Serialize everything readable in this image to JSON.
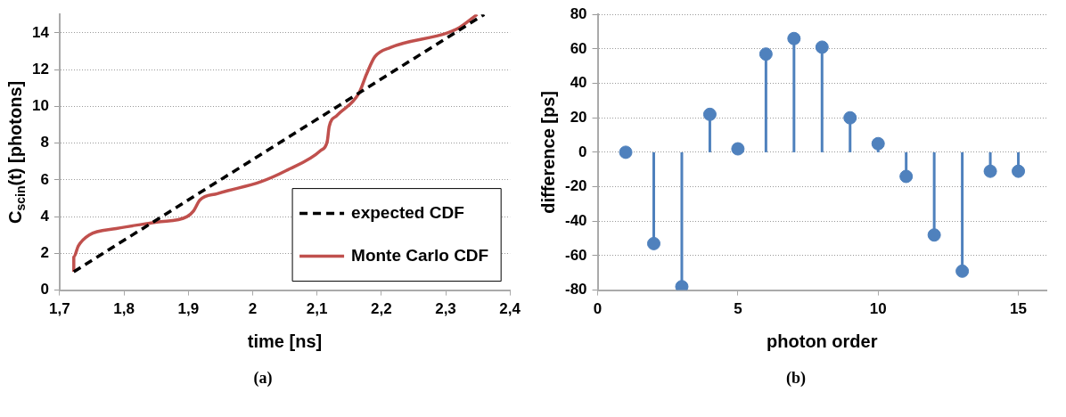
{
  "chart_data": [
    {
      "type": "line",
      "xlabel": "time [ns]",
      "ylabel": "C$_{scin}$(t) [photons]",
      "xlim": [
        1.7,
        2.4
      ],
      "xticks": [
        {
          "value": 1.7,
          "label": "1,7"
        },
        {
          "value": 1.8,
          "label": "1,8"
        },
        {
          "value": 1.9,
          "label": "1,9"
        },
        {
          "value": 2,
          "label": "2"
        },
        {
          "value": 2.1,
          "label": "2,1"
        },
        {
          "value": 2.2,
          "label": "2,2"
        },
        {
          "value": 2.3,
          "label": "2,3"
        },
        {
          "value": 2.4,
          "label": "2,4"
        }
      ],
      "ylim": [
        0,
        15
      ],
      "yticks": [
        0,
        2,
        4,
        6,
        8,
        10,
        12,
        14
      ],
      "grid": "y",
      "legend": "bottom right",
      "marker": "none",
      "annotations": [
        "(a)"
      ],
      "series": [
        {
          "name": "expected CDF",
          "color": "#000000",
          "line_style": "dashed",
          "x": [
            1.722,
            2.36
          ],
          "values": [
            1,
            15
          ]
        },
        {
          "name": "Monte Carlo CDF",
          "color": "#c0504d",
          "line_style": "solid",
          "x": [
            1.722,
            1.722,
            1.729,
            1.746,
            1.788,
            1.851,
            1.898,
            1.908,
            1.918,
            1.945,
            2.013,
            2.052,
            2.106,
            2.116,
            2.119,
            2.131,
            2.165,
            2.177,
            2.19,
            2.214,
            2.303,
            2.322,
            2.349
          ],
          "values": [
            1,
            1.8,
            2.4,
            3,
            3.35,
            3.7,
            4,
            4.3,
            4.9,
            5.25,
            5.9,
            6.5,
            7.6,
            8.1,
            8.9,
            9.5,
            10.7,
            11.75,
            12.7,
            13.2,
            14,
            14.3,
            15
          ]
        }
      ]
    },
    {
      "type": "lollipop",
      "xlabel": "photon order",
      "ylabel": "difference [ps]",
      "x": [
        1,
        2,
        3,
        4,
        5,
        6,
        7,
        8,
        9,
        10,
        11,
        12,
        13,
        14,
        15
      ],
      "values": [
        0,
        -53,
        -78,
        22,
        2,
        57,
        66,
        61,
        20,
        5,
        -14,
        -48,
        -69,
        -11,
        -11
      ],
      "color": "#4f81bd",
      "marker": "circle",
      "xlim": [
        0,
        16
      ],
      "xticks": [
        0,
        5,
        10,
        15
      ],
      "ylim": [
        -80,
        80
      ],
      "yticks": [
        -80,
        -60,
        -40,
        -20,
        0,
        20,
        40,
        60,
        80
      ],
      "grid": "y",
      "annotations": [
        "(b)"
      ]
    }
  ]
}
